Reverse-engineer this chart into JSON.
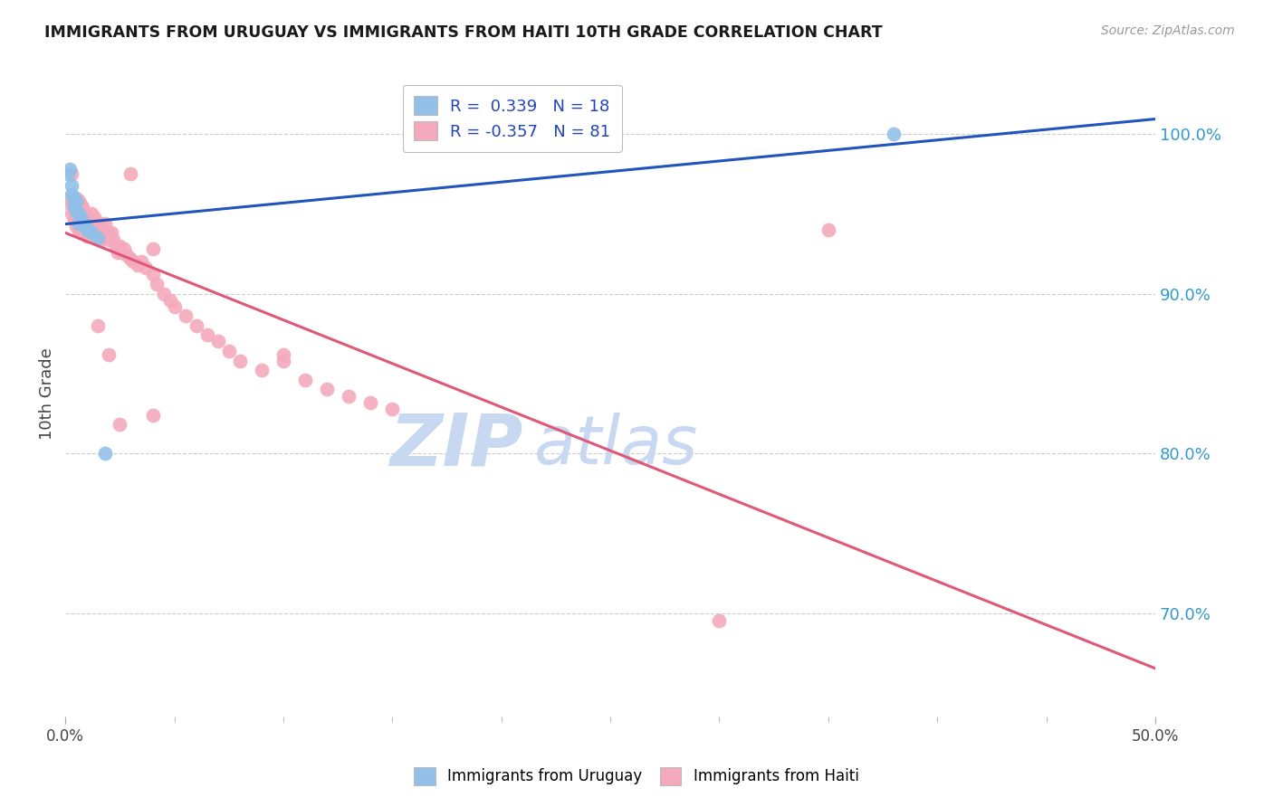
{
  "title": "IMMIGRANTS FROM URUGUAY VS IMMIGRANTS FROM HAITI 10TH GRADE CORRELATION CHART",
  "source": "Source: ZipAtlas.com",
  "ylabel": "10th Grade",
  "ylabel_ticks": [
    "70.0%",
    "80.0%",
    "90.0%",
    "100.0%"
  ],
  "ylabel_values": [
    0.7,
    0.8,
    0.9,
    1.0
  ],
  "xmin": 0.0,
  "xmax": 0.5,
  "ymin": 0.635,
  "ymax": 1.04,
  "color_uruguay": "#92C0E8",
  "color_haiti": "#F4AABC",
  "color_blue_line": "#2255BB",
  "color_pink_line": "#E05878",
  "watermark_zip": "ZIP",
  "watermark_atlas": "atlas",
  "watermark_color": "#C8D8F0",
  "legend_r_uruguay": "R =  0.339",
  "legend_n_uruguay": "N = 18",
  "legend_r_haiti": "R = -0.357",
  "legend_n_haiti": "N = 81",
  "uruguay_points": [
    [
      0.001,
      0.975
    ],
    [
      0.002,
      0.978
    ],
    [
      0.003,
      0.962
    ],
    [
      0.003,
      0.968
    ],
    [
      0.004,
      0.96
    ],
    [
      0.004,
      0.955
    ],
    [
      0.005,
      0.958
    ],
    [
      0.005,
      0.952
    ],
    [
      0.006,
      0.95
    ],
    [
      0.006,
      0.944
    ],
    [
      0.007,
      0.948
    ],
    [
      0.008,
      0.945
    ],
    [
      0.009,
      0.942
    ],
    [
      0.01,
      0.94
    ],
    [
      0.012,
      0.938
    ],
    [
      0.015,
      0.935
    ],
    [
      0.018,
      0.8
    ],
    [
      0.38,
      1.0
    ]
  ],
  "haiti_points": [
    [
      0.002,
      0.96
    ],
    [
      0.003,
      0.955
    ],
    [
      0.003,
      0.95
    ],
    [
      0.003,
      0.975
    ],
    [
      0.004,
      0.958
    ],
    [
      0.004,
      0.952
    ],
    [
      0.004,
      0.946
    ],
    [
      0.005,
      0.96
    ],
    [
      0.005,
      0.953
    ],
    [
      0.005,
      0.948
    ],
    [
      0.005,
      0.942
    ],
    [
      0.006,
      0.958
    ],
    [
      0.006,
      0.952
    ],
    [
      0.006,
      0.946
    ],
    [
      0.006,
      0.94
    ],
    [
      0.007,
      0.956
    ],
    [
      0.007,
      0.95
    ],
    [
      0.007,
      0.944
    ],
    [
      0.007,
      0.938
    ],
    [
      0.008,
      0.954
    ],
    [
      0.008,
      0.948
    ],
    [
      0.008,
      0.942
    ],
    [
      0.009,
      0.95
    ],
    [
      0.009,
      0.944
    ],
    [
      0.01,
      0.948
    ],
    [
      0.01,
      0.942
    ],
    [
      0.01,
      0.936
    ],
    [
      0.011,
      0.946
    ],
    [
      0.011,
      0.94
    ],
    [
      0.012,
      0.95
    ],
    [
      0.012,
      0.944
    ],
    [
      0.013,
      0.948
    ],
    [
      0.013,
      0.938
    ],
    [
      0.014,
      0.944
    ],
    [
      0.015,
      0.94
    ],
    [
      0.016,
      0.944
    ],
    [
      0.016,
      0.934
    ],
    [
      0.017,
      0.94
    ],
    [
      0.018,
      0.944
    ],
    [
      0.019,
      0.938
    ],
    [
      0.02,
      0.934
    ],
    [
      0.021,
      0.938
    ],
    [
      0.022,
      0.934
    ],
    [
      0.023,
      0.93
    ],
    [
      0.024,
      0.926
    ],
    [
      0.025,
      0.93
    ],
    [
      0.026,
      0.926
    ],
    [
      0.027,
      0.928
    ],
    [
      0.028,
      0.924
    ],
    [
      0.03,
      0.975
    ],
    [
      0.03,
      0.922
    ],
    [
      0.031,
      0.92
    ],
    [
      0.033,
      0.918
    ],
    [
      0.035,
      0.92
    ],
    [
      0.037,
      0.916
    ],
    [
      0.04,
      0.912
    ],
    [
      0.04,
      0.928
    ],
    [
      0.042,
      0.906
    ],
    [
      0.045,
      0.9
    ],
    [
      0.048,
      0.896
    ],
    [
      0.05,
      0.892
    ],
    [
      0.055,
      0.886
    ],
    [
      0.06,
      0.88
    ],
    [
      0.065,
      0.874
    ],
    [
      0.07,
      0.87
    ],
    [
      0.075,
      0.864
    ],
    [
      0.08,
      0.858
    ],
    [
      0.09,
      0.852
    ],
    [
      0.1,
      0.858
    ],
    [
      0.1,
      0.862
    ],
    [
      0.11,
      0.846
    ],
    [
      0.12,
      0.84
    ],
    [
      0.13,
      0.836
    ],
    [
      0.14,
      0.832
    ],
    [
      0.15,
      0.828
    ],
    [
      0.015,
      0.88
    ],
    [
      0.02,
      0.862
    ],
    [
      0.025,
      0.818
    ],
    [
      0.04,
      0.824
    ],
    [
      0.35,
      0.94
    ],
    [
      0.3,
      0.695
    ]
  ]
}
